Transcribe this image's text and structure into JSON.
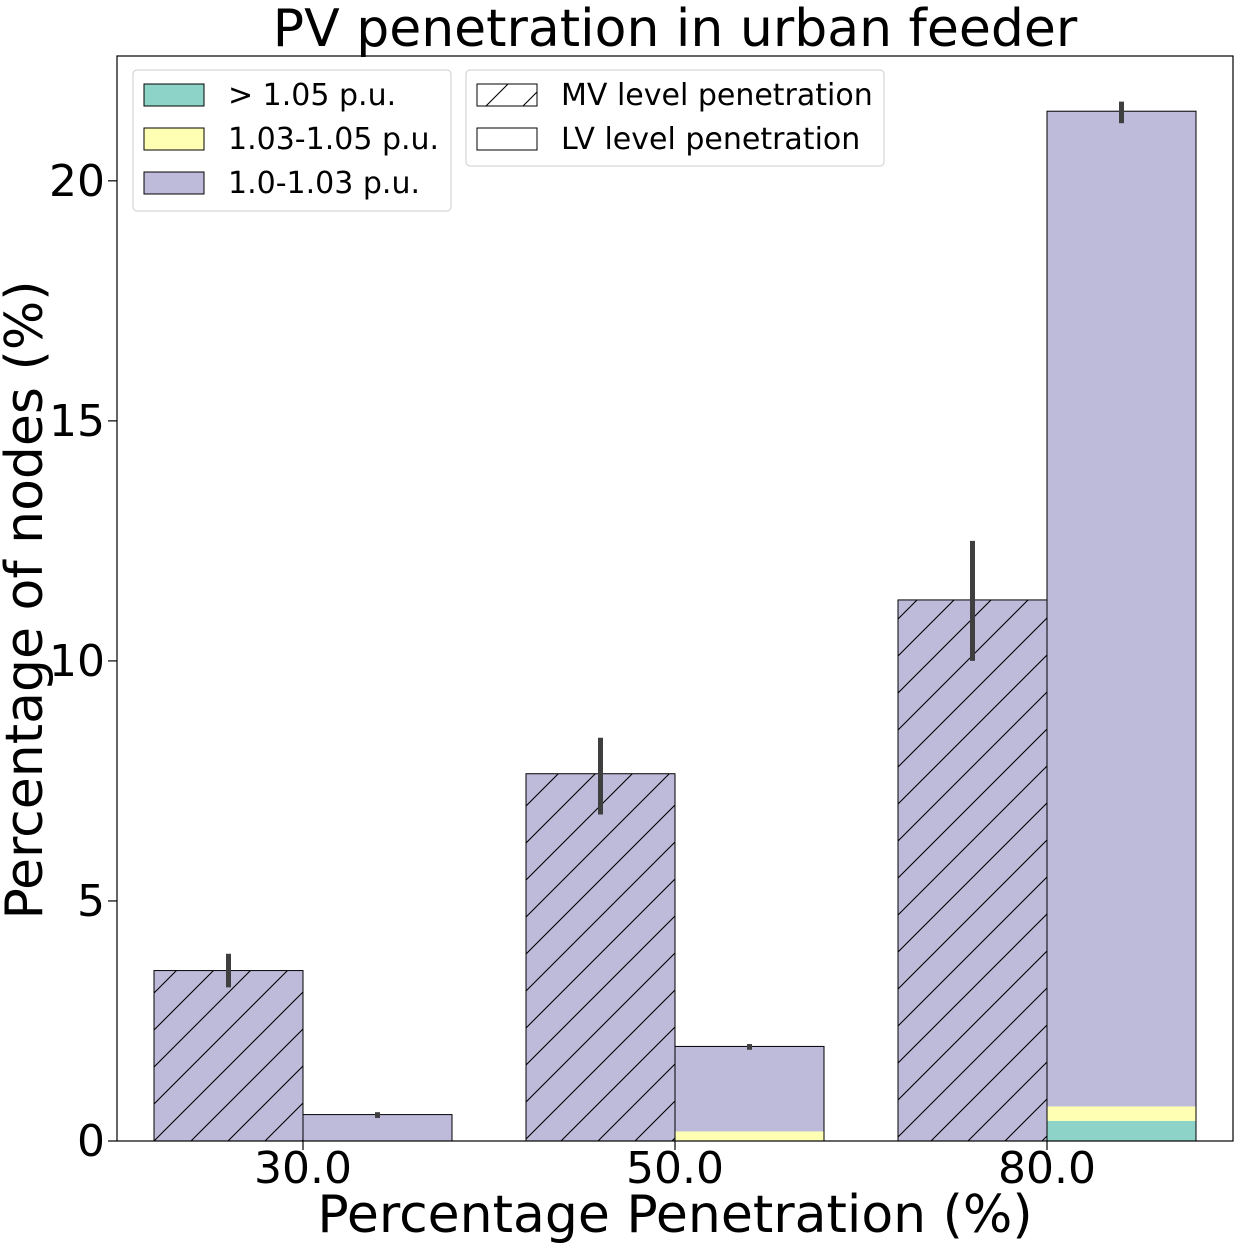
{
  "chart_data": {
    "type": "bar",
    "stacked": true,
    "title": "PV penetration in urban feeder",
    "xlabel": "Percentage Penetration (%)",
    "ylabel": "Percentage of nodes (%)",
    "categories": [
      "30.0",
      "50.0",
      "80.0"
    ],
    "ylim": [
      0,
      22.6
    ],
    "yticks": [
      0,
      5,
      10,
      15,
      20
    ],
    "grid": false,
    "legend_position": "top-left",
    "colors": {
      "gt_105": "#8dd3c7",
      "v103_105": "#ffffb3",
      "v100_103": "#bebada"
    },
    "series": [
      {
        "name": "> 1.05 p.u.",
        "color": "#8dd3c7"
      },
      {
        "name": "1.03-1.05 p.u.",
        "color": "#ffffb3"
      },
      {
        "name": "1.0-1.03 p.u.",
        "color": "#bebada"
      }
    ],
    "groups": [
      {
        "name": "MV level penetration",
        "hatch": "diagonal",
        "stacks": [
          [
            0,
            0,
            3.55
          ],
          [
            0,
            0,
            7.65
          ],
          [
            0,
            0,
            11.27
          ]
        ],
        "error": [
          [
            3.2,
            3.9
          ],
          [
            6.8,
            8.4
          ],
          [
            10.0,
            12.5
          ]
        ]
      },
      {
        "name": "LV level penetration",
        "hatch": "none",
        "stacks": [
          [
            0,
            0,
            0.55
          ],
          [
            0,
            0.2,
            1.77
          ],
          [
            0.42,
            0.3,
            20.73
          ]
        ],
        "error": [
          [
            0.48,
            0.6
          ],
          [
            1.9,
            2.02
          ],
          [
            21.2,
            21.65
          ]
        ]
      }
    ]
  }
}
